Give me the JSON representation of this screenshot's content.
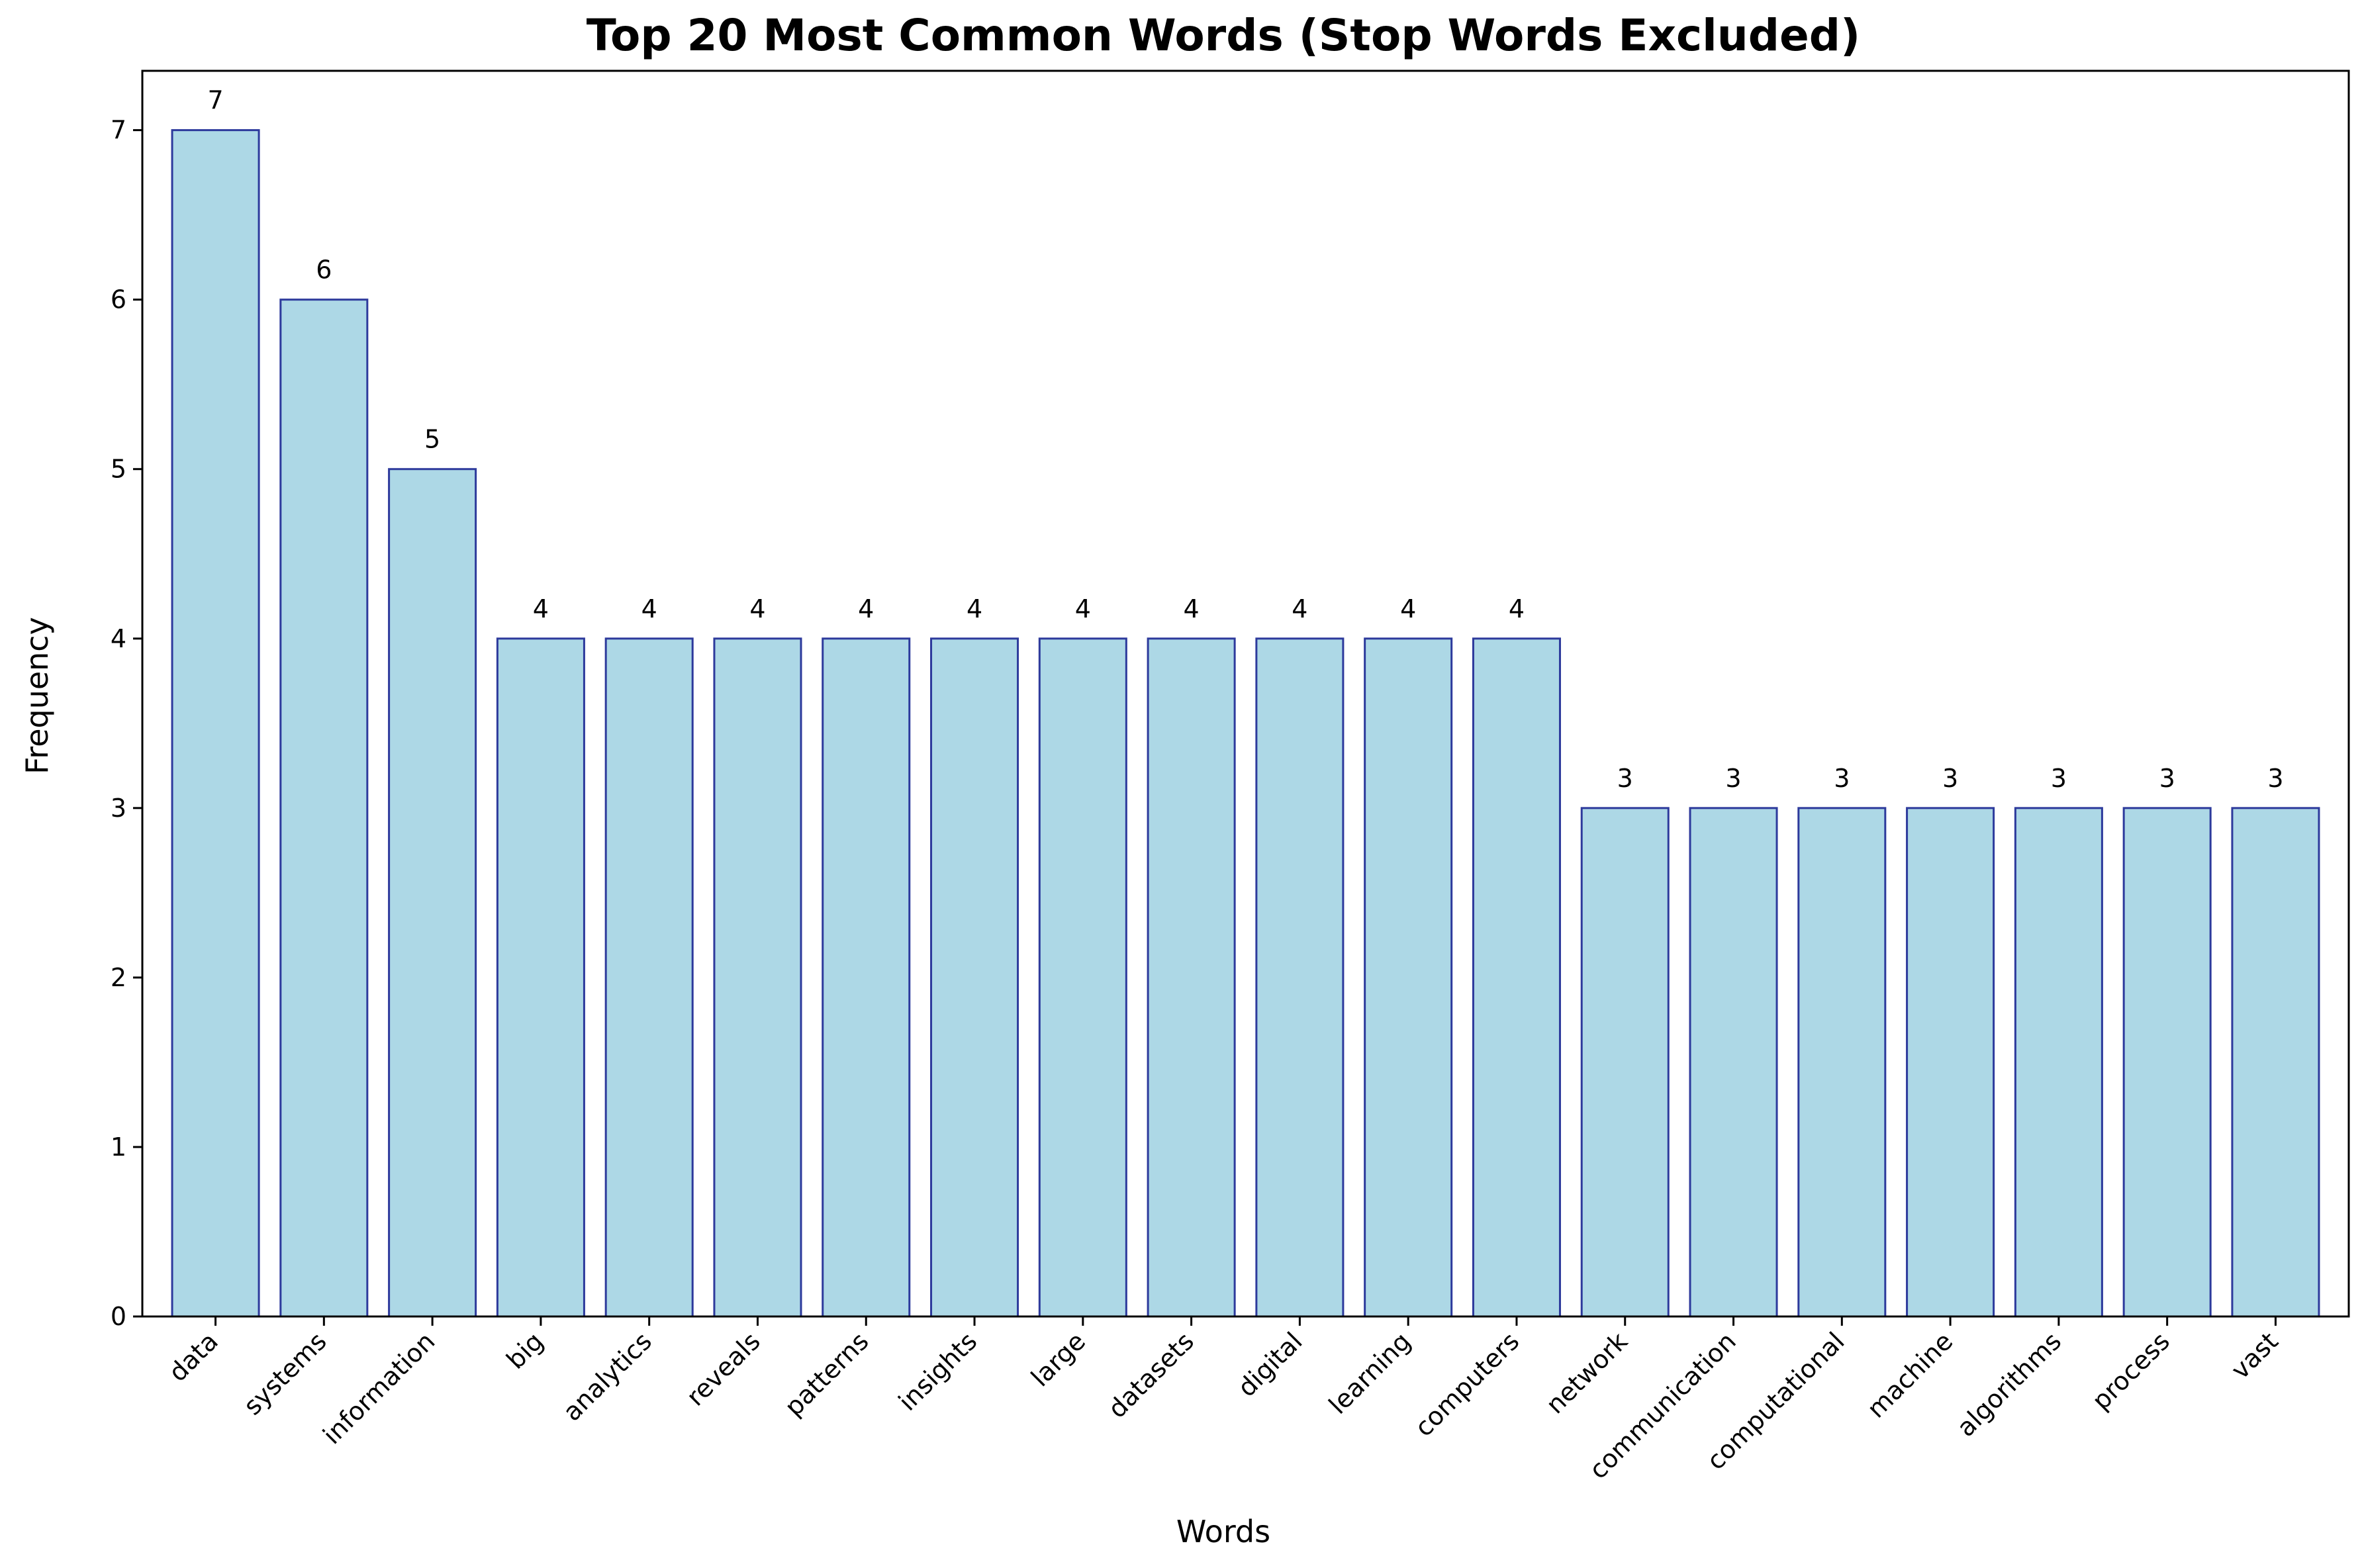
{
  "chart_data": {
    "type": "bar",
    "title": "Top 20 Most Common Words (Stop Words Excluded)",
    "xlabel": "Words",
    "ylabel": "Frequency",
    "categories": [
      "data",
      "systems",
      "information",
      "big",
      "analytics",
      "reveals",
      "patterns",
      "insights",
      "large",
      "datasets",
      "digital",
      "learning",
      "computers",
      "network",
      "communication",
      "computational",
      "machine",
      "algorithms",
      "process",
      "vast"
    ],
    "values": [
      7,
      6,
      5,
      4,
      4,
      4,
      4,
      4,
      4,
      4,
      4,
      4,
      4,
      3,
      3,
      3,
      3,
      3,
      3,
      3
    ],
    "ylim": [
      0,
      7.35
    ],
    "yticks": [
      0,
      1,
      2,
      3,
      4,
      5,
      6,
      7
    ],
    "grid": false,
    "legend": "none",
    "colors": {
      "bar_fill": "#add8e6",
      "bar_edge": "#2d3a9c",
      "axis": "#000000",
      "text": "#000000"
    }
  }
}
